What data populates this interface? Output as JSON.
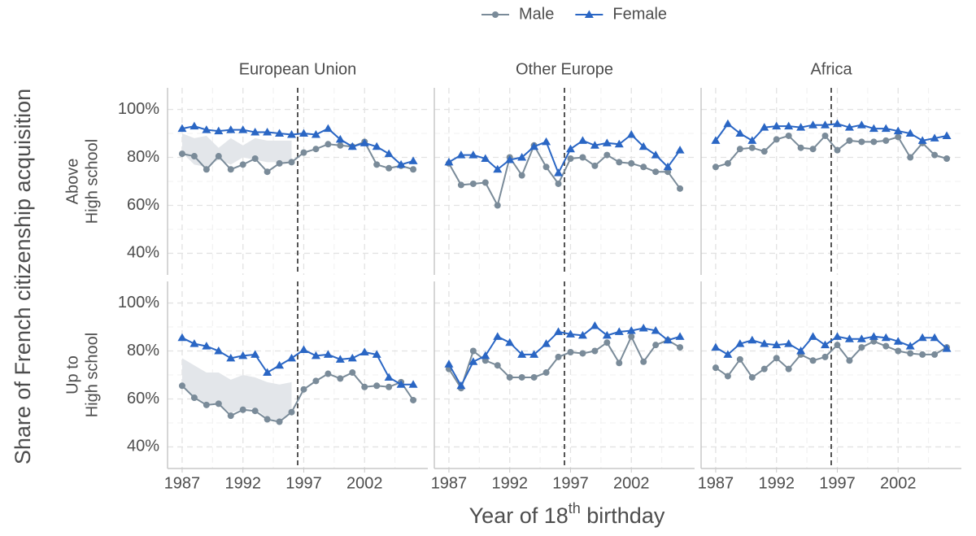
{
  "chart_data": {
    "type": "line",
    "y_label": "Share of French citizenship acquisition",
    "x_label": [
      "Year of 18",
      "th",
      " birthday"
    ],
    "legend": [
      {
        "name": "Male",
        "color": "#7a8b99",
        "marker": "circle"
      },
      {
        "name": "Female",
        "color": "#2a66c4",
        "marker": "triangle"
      }
    ],
    "legend_position": "top",
    "columns": [
      "European Union",
      "Other Europe",
      "Africa"
    ],
    "x": [
      1987,
      1988,
      1989,
      1990,
      1991,
      1992,
      1993,
      1994,
      1995,
      1996,
      1997,
      1998,
      1999,
      2000,
      2001,
      2002,
      2003,
      2004,
      2005,
      2006
    ],
    "xlim": [
      1985.8,
      2007.2
    ],
    "xticks": [
      1987,
      1992,
      1997,
      2002
    ],
    "minor_xticks": [
      1989.5,
      1994.5,
      1999.5,
      2004.5
    ],
    "ylim": [
      31,
      109
    ],
    "yticks": [
      {
        "value": 40,
        "label": "40%"
      },
      {
        "value": 60,
        "label": "60%"
      },
      {
        "value": 80,
        "label": "80%"
      },
      {
        "value": 100,
        "label": "100%"
      }
    ],
    "minor_yticks": [
      50,
      70,
      90
    ],
    "vline": 1996.5,
    "grid": true,
    "ribbon_color": "#e3e6ea",
    "rows": [
      {
        "label": [
          "Above",
          "High school"
        ],
        "panels": [
          {
            "series": [
              {
                "values": [
                  81.5,
                  80.5,
                  75,
                  80.5,
                  75,
                  77,
                  79.5,
                  74,
                  77.5,
                  78,
                  82,
                  83.5,
                  85.5,
                  85,
                  84.5,
                  86.5,
                  77,
                  75.5,
                  76.5,
                  75
                ]
              },
              {
                "values": [
                  92,
                  93,
                  91.5,
                  91,
                  91.5,
                  91.5,
                  90.5,
                  90.5,
                  90,
                  89.5,
                  90,
                  89.5,
                  92,
                  87.5,
                  84.5,
                  86,
                  84.5,
                  81.5,
                  77,
                  78.5
                ]
              }
            ],
            "ribbon": {
              "upper": [
                90,
                88,
                89,
                84,
                88,
                85,
                88,
                87,
                87,
                87
              ],
              "lower": [
                82,
                77,
                76,
                79,
                77,
                80,
                79,
                78,
                78,
                78
              ]
            }
          },
          {
            "series": [
              {
                "values": [
                  77.5,
                  68.5,
                  69,
                  69.5,
                  60,
                  80,
                  72.5,
                  85,
                  76,
                  69,
                  79.5,
                  80,
                  76.5,
                  81,
                  78,
                  77.5,
                  76,
                  74,
                  74,
                  67
                ]
              },
              {
                "values": [
                  78,
                  81,
                  81,
                  79.5,
                  75,
                  79,
                  80,
                  84.5,
                  86.5,
                  73.5,
                  83.5,
                  87,
                  85,
                  86,
                  85.5,
                  89.5,
                  84.5,
                  81,
                  76,
                  83
                ]
              }
            ]
          },
          {
            "series": [
              {
                "values": [
                  76,
                  77.5,
                  83.5,
                  84,
                  82.5,
                  87.5,
                  89,
                  84,
                  83.5,
                  89,
                  83,
                  87,
                  86.5,
                  86.5,
                  87,
                  88.5,
                  80,
                  86,
                  81,
                  79.5
                ]
              },
              {
                "values": [
                  87,
                  94,
                  90,
                  87,
                  92.5,
                  93,
                  93,
                  92.5,
                  93.5,
                  93.5,
                  94,
                  92.5,
                  93.5,
                  92,
                  92,
                  91,
                  90,
                  87,
                  88,
                  89
                ]
              }
            ]
          }
        ]
      },
      {
        "label": [
          "Up to",
          "High school"
        ],
        "panels": [
          {
            "series": [
              {
                "values": [
                  65.5,
                  60.5,
                  57.5,
                  58,
                  53,
                  55.5,
                  55,
                  51.5,
                  50.5,
                  54.5,
                  64,
                  67.5,
                  70.5,
                  68.5,
                  71,
                  65,
                  65.5,
                  65,
                  67,
                  59.5
                ]
              },
              {
                "values": [
                  85.5,
                  83,
                  82,
                  80,
                  77,
                  78,
                  78.5,
                  71,
                  74,
                  77,
                  80.5,
                  78,
                  78.5,
                  76.5,
                  77,
                  79.5,
                  78.5,
                  69,
                  66,
                  66
                ]
              }
            ],
            "ribbon": {
              "upper": [
                77,
                74,
                71,
                71,
                68,
                70,
                69,
                67,
                66,
                67
              ],
              "lower": [
                66,
                61,
                58,
                58,
                54,
                56,
                56,
                52,
                51,
                55
              ]
            }
          },
          {
            "series": [
              {
                "values": [
                  72.5,
                  64.5,
                  80,
                  76,
                  74,
                  69,
                  69,
                  69,
                  71,
                  77.5,
                  79.5,
                  79,
                  80,
                  83.5,
                  75,
                  86,
                  75.5,
                  82.5,
                  84.5,
                  81.5
                ]
              },
              {
                "values": [
                  74.5,
                  65.5,
                  75.5,
                  78,
                  86,
                  83.5,
                  78.5,
                  78.5,
                  83,
                  88,
                  87,
                  86.5,
                  90.5,
                  86.5,
                  88,
                  88.5,
                  89.5,
                  88.5,
                  84.5,
                  86
                ]
              }
            ]
          },
          {
            "series": [
              {
                "values": [
                  73,
                  69.5,
                  76.5,
                  69,
                  72.5,
                  77,
                  72.5,
                  78.5,
                  76,
                  77.5,
                  82.5,
                  76,
                  81.5,
                  84,
                  82,
                  80,
                  79,
                  78.5,
                  78.5,
                  81.5
                ]
              },
              {
                "values": [
                  81.5,
                  78.5,
                  83,
                  84.5,
                  83,
                  82.5,
                  83,
                  80,
                  86,
                  82.5,
                  86,
                  85,
                  85,
                  86,
                  85.5,
                  84,
                  82,
                  85.5,
                  85.5,
                  81
                ]
              }
            ]
          }
        ]
      }
    ]
  }
}
